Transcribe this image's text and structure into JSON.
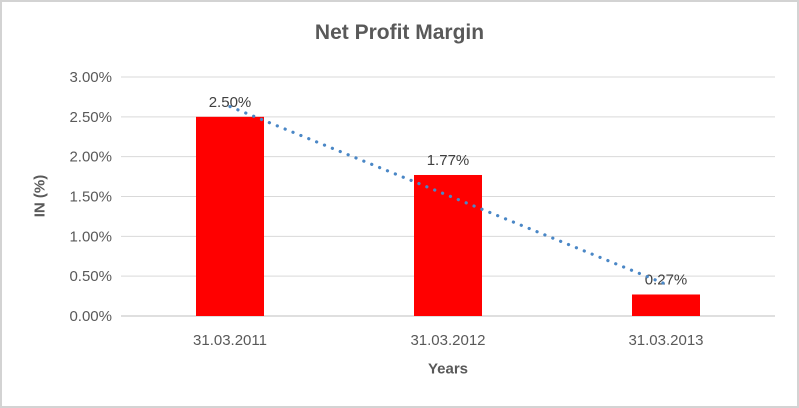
{
  "chart_data": {
    "type": "bar",
    "title": "Net Profit Margin",
    "xlabel": "Years",
    "ylabel": "IN (%)",
    "categories": [
      "31.03.2011",
      "31.03.2012",
      "31.03.2013"
    ],
    "values": [
      2.5,
      1.77,
      0.27
    ],
    "data_labels": [
      "2.50%",
      "1.77%",
      "0.27%"
    ],
    "ylim": [
      0,
      3
    ],
    "ytick_step": 0.5,
    "ytick_labels": [
      "0.00%",
      "0.50%",
      "1.00%",
      "1.50%",
      "2.00%",
      "2.50%",
      "3.00%"
    ],
    "grid": true,
    "legend": "none",
    "bar_color": "#FF0000",
    "trendline": {
      "type": "linear",
      "style": "dotted",
      "color": "#4A87C6"
    }
  },
  "colors": {
    "background": "#FFFFFF",
    "frame_border": "#D3D3D3",
    "gridline": "#D9D9D9",
    "axis_line": "#BFBFBF",
    "tick_label": "#595959",
    "title_text": "#595959",
    "axis_title_text": "#595959",
    "data_label": "#404040",
    "bar": "#FF0000",
    "trendline": "#4A87C6"
  }
}
